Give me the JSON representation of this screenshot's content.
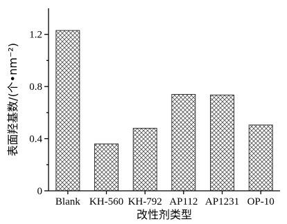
{
  "chart_data": {
    "type": "bar",
    "categories": [
      "Blank",
      "KH-560",
      "KH-792",
      "AP112",
      "AP1231",
      "OP-10"
    ],
    "values": [
      1.23,
      0.36,
      0.48,
      0.74,
      0.735,
      0.505
    ],
    "xlabel": "改性剂类型",
    "ylabel": "表面羟基数/(个•nm⁻²)",
    "ylim": [
      0,
      1.4
    ],
    "yticks": [
      "0",
      "0.4",
      "0.8",
      "1.2"
    ],
    "grid": false,
    "legend": "none",
    "bar_fill": "crosshatch",
    "colors": {
      "bar_stroke": "#333333",
      "hatch": "#555555",
      "axis": "#000000"
    }
  }
}
